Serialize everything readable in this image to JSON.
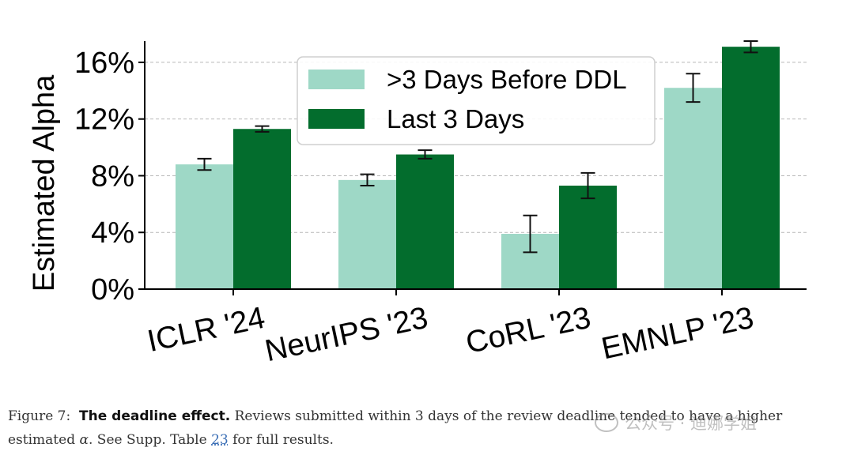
{
  "chart_data": {
    "type": "bar",
    "categories": [
      "ICLR '24",
      "NeurIPS '23",
      "CoRL '23",
      "EMNLP '23"
    ],
    "series": [
      {
        "name": ">3 Days Before DDL",
        "color": "#9ed8c6",
        "values": [
          8.8,
          7.7,
          3.9,
          14.2
        ],
        "errors": [
          0.4,
          0.4,
          1.3,
          1.0
        ]
      },
      {
        "name": "Last 3 Days",
        "color": "#036d2d",
        "values": [
          11.3,
          9.5,
          7.3,
          17.1
        ],
        "errors": [
          0.2,
          0.3,
          0.9,
          0.4
        ]
      }
    ],
    "ylabel": "Estimated Alpha",
    "ylim": [
      0,
      17.5
    ],
    "yticks": [
      0,
      4,
      8,
      12,
      16
    ],
    "ytick_labels": [
      "0%",
      "4%",
      "8%",
      "12%",
      "16%"
    ],
    "grid": true,
    "legend_position": "top-center"
  },
  "caption": {
    "figure_label": "Figure 7:",
    "title": "The deadline effect.",
    "text_before_symbol": "Reviews submitted within 3 days of the review deadline tended to have a higher estimated",
    "symbol": "α",
    "text_after_symbol": ". See Supp. Table",
    "table_ref": "23",
    "text_end": "for full results."
  },
  "watermark": {
    "text": "公众号 · 迪娜学姐",
    "icon": "wechat-logo-icon"
  }
}
